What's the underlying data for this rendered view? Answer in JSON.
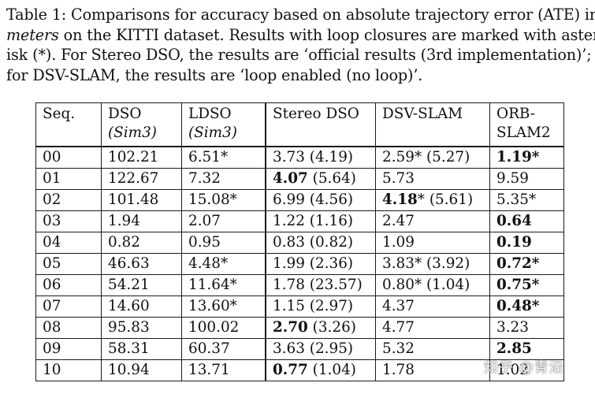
{
  "caption": {
    "line1": "Table 1:  Comparisons for accuracy based on absolute trajectory error (ATE) in",
    "line2_italic": "meters",
    "line2_rest": " on the KITTI dataset.  Results with loop closures are marked with aster-",
    "line3": "isk (*).  For Stereo DSO, the results are ‘official results (3rd implementation)’;",
    "line4": "for DSV-SLAM, the results are ‘loop enabled (no loop)’."
  },
  "table": {
    "headers": {
      "seq": "Seq.",
      "dso_line1": "DSO",
      "dso_line2": "(Sim3)",
      "ldso_line1": "LDSO",
      "ldso_line2": "(Sim3)",
      "stereo_dso": "Stereo DSO",
      "dsv_slam": "DSV-SLAM",
      "orb_line1": "ORB-",
      "orb_line2": "SLAM2"
    },
    "rows": [
      {
        "seq": "00",
        "dso": "102.21",
        "ldso": "6.51*",
        "sdso_main": "3.73",
        "sdso_bold": false,
        "sdso_paren": " (4.19)",
        "dsv_main": "2.59*",
        "dsv_bold": false,
        "dsv_paren": " (5.27)",
        "orb": "1.19*",
        "orb_bold": true
      },
      {
        "seq": "01",
        "dso": "122.67",
        "ldso": "7.32",
        "sdso_main": "4.07",
        "sdso_bold": true,
        "sdso_paren": " (5.64)",
        "dsv_main": "5.73",
        "dsv_bold": false,
        "dsv_paren": "",
        "orb": "9.59",
        "orb_bold": false
      },
      {
        "seq": "02",
        "dso": "101.48",
        "ldso": "15.08*",
        "sdso_main": "6.99",
        "sdso_bold": false,
        "sdso_paren": " (4.56)",
        "dsv_main": "4.18",
        "dsv_bold": true,
        "dsv_paren": "* (5.61)",
        "orb": "5.35*",
        "orb_bold": false
      },
      {
        "seq": "03",
        "dso": "1.94",
        "ldso": "2.07",
        "sdso_main": "1.22",
        "sdso_bold": false,
        "sdso_paren": " (1.16)",
        "dsv_main": "2.47",
        "dsv_bold": false,
        "dsv_paren": "",
        "orb": "0.64",
        "orb_bold": true
      },
      {
        "seq": "04",
        "dso": "0.82",
        "ldso": "0.95",
        "sdso_main": "0.83",
        "sdso_bold": false,
        "sdso_paren": " (0.82)",
        "dsv_main": "1.09",
        "dsv_bold": false,
        "dsv_paren": "",
        "orb": "0.19",
        "orb_bold": true
      },
      {
        "seq": "05",
        "dso": "46.63",
        "ldso": "4.48*",
        "sdso_main": "1.99",
        "sdso_bold": false,
        "sdso_paren": " (2.36)",
        "dsv_main": "3.83*",
        "dsv_bold": false,
        "dsv_paren": " (3.92)",
        "orb": "0.72*",
        "orb_bold": true
      },
      {
        "seq": "06",
        "dso": "54.21",
        "ldso": "11.64*",
        "sdso_main": "1.78",
        "sdso_bold": false,
        "sdso_paren": " (23.57)",
        "dsv_main": "0.80*",
        "dsv_bold": false,
        "dsv_paren": " (1.04)",
        "orb": "0.75*",
        "orb_bold": true
      },
      {
        "seq": "07",
        "dso": "14.60",
        "ldso": "13.60*",
        "sdso_main": "1.15",
        "sdso_bold": false,
        "sdso_paren": " (2.97)",
        "dsv_main": "4.37",
        "dsv_bold": false,
        "dsv_paren": "",
        "orb": "0.48*",
        "orb_bold": true
      },
      {
        "seq": "08",
        "dso": "95.83",
        "ldso": "100.02",
        "sdso_main": "2.70",
        "sdso_bold": true,
        "sdso_paren": " (3.26)",
        "dsv_main": "4.77",
        "dsv_bold": false,
        "dsv_paren": "",
        "orb": "3.23",
        "orb_bold": false
      },
      {
        "seq": "09",
        "dso": "58.31",
        "ldso": "60.37",
        "sdso_main": "3.63",
        "sdso_bold": false,
        "sdso_paren": " (2.95)",
        "dsv_main": "5.32",
        "dsv_bold": false,
        "dsv_paren": "",
        "orb": "2.85",
        "orb_bold": true
      },
      {
        "seq": "10",
        "dso": "10.94",
        "ldso": "13.71",
        "sdso_main": "0.77",
        "sdso_bold": true,
        "sdso_paren": " (1.04)",
        "dsv_main": "1.78",
        "dsv_bold": false,
        "dsv_paren": "",
        "orb": "1.02",
        "orb_bold": false
      }
    ]
  },
  "watermark": "知乎 @青沿"
}
